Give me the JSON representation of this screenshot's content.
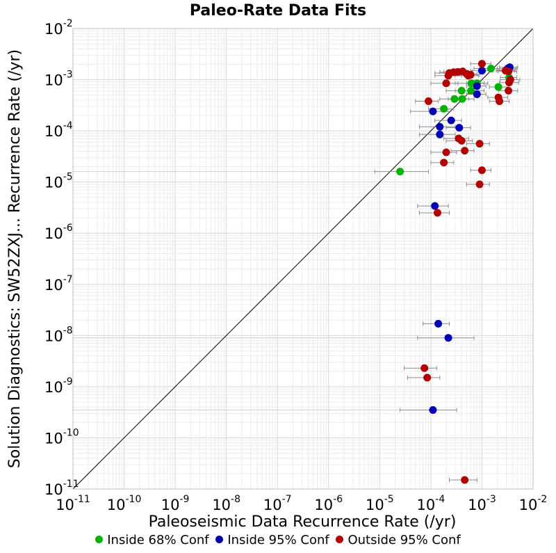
{
  "chart_data": {
    "type": "scatter",
    "title": "Paleo-Rate Data Fits",
    "xlabel": "Paleoseismic Data Recurrence Rate (/yr)",
    "ylabel": "Solution Diagnostics: SW52ZXJ... Recurrence Rate (/yr)",
    "x_scale": "log",
    "y_scale": "log",
    "xlim": [
      1e-11,
      0.01
    ],
    "ylim": [
      1e-11,
      0.01
    ],
    "x_tick_exponents": [
      "-11",
      "-10",
      "-9",
      "-8",
      "-7",
      "-6",
      "-5",
      "-4",
      "-3",
      "-2"
    ],
    "y_tick_exponents": [
      "-11",
      "-10",
      "-9",
      "-8",
      "-7",
      "-6",
      "-5",
      "-4",
      "-3",
      "-2"
    ],
    "tick_base": "10",
    "grid": true,
    "reference_line": "y = x",
    "legend_position": "bottom",
    "series": [
      {
        "name": "Inside 68% Conf",
        "color": "#00b200",
        "points": [
          {
            "x": 2.5e-05,
            "y": 1.6e-05,
            "xerr": [
              8e-06,
              9e-05
            ]
          },
          {
            "x": 0.00018,
            "y": 0.00027,
            "xerr": [
              9e-05,
              0.00028
            ]
          },
          {
            "x": 0.00029,
            "y": 0.00042,
            "xerr": [
              0.00015,
              0.00055
            ]
          },
          {
            "x": 0.00041,
            "y": 0.00042,
            "xerr": [
              0.00022,
              0.0007
            ]
          },
          {
            "x": 0.0004,
            "y": 0.00061,
            "xerr": [
              0.0002,
              0.0007
            ]
          },
          {
            "x": 0.00061,
            "y": 0.00061,
            "xerr": [
              0.0003,
              0.0011
            ]
          },
          {
            "x": 0.00062,
            "y": 0.00085,
            "xerr": [
              0.0003,
              0.0011
            ]
          },
          {
            "x": 0.0008,
            "y": 0.00085,
            "xerr": [
              0.0005,
              0.0013
            ]
          },
          {
            "x": 0.0015,
            "y": 0.00165,
            "xerr": [
              0.0007,
              0.0022
            ]
          },
          {
            "x": 0.0021,
            "y": 0.00072,
            "xerr": [
              0.0014,
              0.0033
            ]
          },
          {
            "x": 0.0034,
            "y": 0.0011,
            "xerr": [
              0.0023,
              0.0048
            ]
          }
        ]
      },
      {
        "name": "Inside 95% Conf",
        "color": "#0000b2",
        "points": [
          {
            "x": 0.00011,
            "y": 3.5e-10,
            "xerr": [
              2.5e-05,
              0.00032
            ]
          },
          {
            "x": 0.00022,
            "y": 9e-09,
            "xerr": [
              5.5e-05,
              0.0007
            ]
          },
          {
            "x": 0.00014,
            "y": 1.7e-08,
            "xerr": [
              7e-05,
              0.00023
            ]
          },
          {
            "x": 0.00012,
            "y": 3.4e-06,
            "xerr": [
              5.5e-05,
              0.00022
            ]
          },
          {
            "x": 0.00011,
            "y": 0.00024,
            "xerr": [
              4e-05,
              0.00022
            ]
          },
          {
            "x": 0.00025,
            "y": 0.00016,
            "xerr": [
              0.00012,
              0.0004
            ]
          },
          {
            "x": 0.00015,
            "y": 0.00012,
            "xerr": [
              6e-05,
              0.0003
            ]
          },
          {
            "x": 0.00015,
            "y": 8.5e-05,
            "xerr": [
              6e-05,
              0.0003
            ]
          },
          {
            "x": 0.00036,
            "y": 0.000115,
            "xerr": [
              0.0002,
              0.0006
            ]
          },
          {
            "x": 0.0008,
            "y": 0.00052,
            "xerr": [
              0.0005,
              0.0012
            ]
          },
          {
            "x": 0.0008,
            "y": 0.00075,
            "xerr": [
              0.0005,
              0.0012
            ]
          },
          {
            "x": 0.001,
            "y": 0.0015,
            "xerr": [
              0.0006,
              0.0016
            ]
          },
          {
            "x": 0.003,
            "y": 0.00155,
            "xerr": [
              0.002,
              0.0045
            ]
          },
          {
            "x": 0.0032,
            "y": 0.00165,
            "xerr": [
              0.002,
              0.0048
            ]
          },
          {
            "x": 0.0035,
            "y": 0.00175,
            "xerr": [
              0.0022,
              0.005
            ]
          }
        ]
      },
      {
        "name": "Outside 95% Conf",
        "color": "#b20000",
        "points": [
          {
            "x": 0.00046,
            "y": 1.5e-11,
            "xerr": [
              0.00023,
              0.0008
            ]
          },
          {
            "x": 8.5e-05,
            "y": 1.5e-09,
            "xerr": [
              3.5e-05,
              0.00015
            ]
          },
          {
            "x": 7.5e-05,
            "y": 2.3e-09,
            "xerr": [
              3e-05,
              0.00013
            ]
          },
          {
            "x": 0.000135,
            "y": 2.5e-06,
            "xerr": [
              6e-05,
              0.00023
            ]
          },
          {
            "x": 0.0009,
            "y": 9e-06,
            "xerr": [
              0.0005,
              0.0014
            ]
          },
          {
            "x": 0.001,
            "y": 1.7e-05,
            "xerr": [
              0.0006,
              0.0015
            ]
          },
          {
            "x": 0.00018,
            "y": 2.4e-05,
            "xerr": [
              0.0001,
              0.00028
            ]
          },
          {
            "x": 0.0002,
            "y": 3.8e-05,
            "xerr": [
              0.0001,
              0.00032
            ]
          },
          {
            "x": 0.00046,
            "y": 4.1e-05,
            "xerr": [
              0.00025,
              0.0007
            ]
          },
          {
            "x": 0.0009,
            "y": 5.6e-05,
            "xerr": [
              0.0005,
              0.0014
            ]
          },
          {
            "x": 0.0004,
            "y": 6.4e-05,
            "xerr": [
              0.0002,
              0.00065
            ]
          },
          {
            "x": 0.00035,
            "y": 7.1e-05,
            "xerr": [
              0.00018,
              0.00055
            ]
          },
          {
            "x": 9e-05,
            "y": 0.00038,
            "xerr": [
              5e-05,
              0.00014
            ]
          },
          {
            "x": 0.0022,
            "y": 0.00038,
            "xerr": [
              0.0014,
              0.0034
            ]
          },
          {
            "x": 0.0021,
            "y": 0.00045,
            "xerr": [
              0.0013,
              0.0032
            ]
          },
          {
            "x": 0.0002,
            "y": 0.00085,
            "xerr": [
              0.0001,
              0.00034
            ]
          },
          {
            "x": 0.0033,
            "y": 0.00061,
            "xerr": [
              0.0021,
              0.005
            ]
          },
          {
            "x": 0.0034,
            "y": 0.00088,
            "xerr": [
              0.0022,
              0.0052
            ]
          },
          {
            "x": 0.0036,
            "y": 0.001,
            "xerr": [
              0.0023,
              0.0055
            ]
          },
          {
            "x": 0.00022,
            "y": 0.0012,
            "xerr": [
              0.00012,
              0.0004
            ]
          },
          {
            "x": 0.00023,
            "y": 0.00135,
            "xerr": [
              0.00012,
              0.0004
            ]
          },
          {
            "x": 0.00028,
            "y": 0.0014,
            "xerr": [
              0.00015,
              0.00045
            ]
          },
          {
            "x": 0.00034,
            "y": 0.00142,
            "xerr": [
              0.00018,
              0.00055
            ]
          },
          {
            "x": 0.00042,
            "y": 0.00145,
            "xerr": [
              0.00022,
              0.00065
            ]
          },
          {
            "x": 0.0005,
            "y": 0.0013,
            "xerr": [
              0.00027,
              0.0008
            ]
          },
          {
            "x": 0.00054,
            "y": 0.0012,
            "xerr": [
              0.0003,
              0.00085
            ]
          },
          {
            "x": 0.0006,
            "y": 0.00125,
            "xerr": [
              0.00032,
              0.0009
            ]
          },
          {
            "x": 0.001,
            "y": 0.00205,
            "xerr": [
              0.0006,
              0.0015
            ]
          },
          {
            "x": 0.0029,
            "y": 0.0015,
            "xerr": [
              0.0019,
              0.0043
            ]
          },
          {
            "x": 0.0033,
            "y": 0.00145,
            "xerr": [
              0.0021,
              0.0048
            ]
          }
        ]
      }
    ]
  }
}
